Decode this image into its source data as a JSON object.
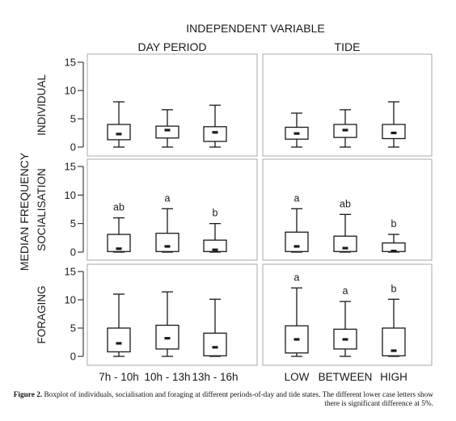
{
  "chart_data": {
    "type": "boxplot",
    "title": "INDEPENDENT VARIABLE",
    "ylabel": "MEDIAN FREQUENCY",
    "ylim": [
      0,
      15
    ],
    "yticks": [
      0,
      5,
      10,
      15
    ],
    "grid": false,
    "column_groups": [
      {
        "name": "DAY PERIOD",
        "categories": [
          "7h - 10h",
          "10h - 13h",
          "13h - 16h"
        ]
      },
      {
        "name": "TIDE",
        "categories": [
          "LOW",
          "BETWEEN",
          "HIGH"
        ]
      }
    ],
    "rows": [
      {
        "name": "INDIVIDUAL",
        "groups": [
          [
            {
              "min": 0,
              "q1": 1.3,
              "median": 2.3,
              "q3": 4.0,
              "max": 8.0,
              "letter": ""
            },
            {
              "min": 0,
              "q1": 1.6,
              "median": 3.0,
              "q3": 3.7,
              "max": 6.6,
              "letter": ""
            },
            {
              "min": 0,
              "q1": 1.0,
              "median": 2.6,
              "q3": 3.6,
              "max": 7.4,
              "letter": ""
            }
          ],
          [
            {
              "min": 0,
              "q1": 1.4,
              "median": 2.4,
              "q3": 3.5,
              "max": 6.0,
              "letter": ""
            },
            {
              "min": 0,
              "q1": 1.7,
              "median": 3.0,
              "q3": 4.0,
              "max": 6.6,
              "letter": ""
            },
            {
              "min": 0,
              "q1": 1.5,
              "median": 2.5,
              "q3": 4.0,
              "max": 8.0,
              "letter": ""
            }
          ]
        ]
      },
      {
        "name": "SOCIALISATION",
        "groups": [
          [
            {
              "min": 0,
              "q1": 0.1,
              "median": 0.6,
              "q3": 3.1,
              "max": 6.0,
              "letter": "ab"
            },
            {
              "min": 0,
              "q1": 0.1,
              "median": 1.0,
              "q3": 3.3,
              "max": 7.6,
              "letter": "a"
            },
            {
              "min": 0,
              "q1": 0.1,
              "median": 0.4,
              "q3": 2.1,
              "max": 5.0,
              "letter": "b"
            }
          ],
          [
            {
              "min": 0,
              "q1": 0.1,
              "median": 1.0,
              "q3": 3.5,
              "max": 7.6,
              "letter": "a"
            },
            {
              "min": 0,
              "q1": 0.1,
              "median": 0.7,
              "q3": 2.8,
              "max": 6.6,
              "letter": "ab"
            },
            {
              "min": 0,
              "q1": 0.1,
              "median": 0.2,
              "q3": 1.6,
              "max": 3.1,
              "letter": "b"
            }
          ]
        ]
      },
      {
        "name": "FORAGING",
        "groups": [
          [
            {
              "min": 0,
              "q1": 0.8,
              "median": 2.3,
              "q3": 5.0,
              "max": 11.0,
              "letter": ""
            },
            {
              "min": 0,
              "q1": 1.3,
              "median": 3.2,
              "q3": 5.5,
              "max": 11.4,
              "letter": ""
            },
            {
              "min": 0,
              "q1": 0.1,
              "median": 1.6,
              "q3": 4.1,
              "max": 10.1,
              "letter": ""
            }
          ],
          [
            {
              "min": 0,
              "q1": 0.6,
              "median": 3.0,
              "q3": 5.4,
              "max": 12.1,
              "letter": "a"
            },
            {
              "min": 0,
              "q1": 1.3,
              "median": 3.0,
              "q3": 4.8,
              "max": 9.7,
              "letter": "a"
            },
            {
              "min": 0,
              "q1": 0.1,
              "median": 1.0,
              "q3": 5.0,
              "max": 10.1,
              "letter": "b"
            }
          ]
        ]
      }
    ]
  },
  "caption": {
    "lead": "Figure 2.",
    "text": " Boxplot of individuals, socialisation and foraging at different periods-of-day and tide states. The different lower case letters show there is significant difference at 5%."
  }
}
